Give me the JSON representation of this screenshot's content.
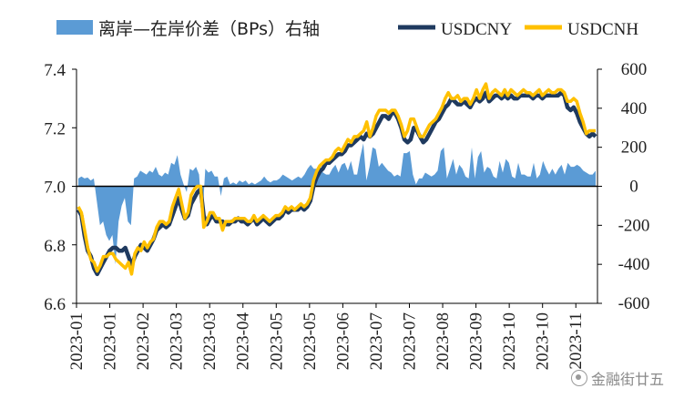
{
  "chart_data": {
    "type": "line",
    "legend": {
      "placement": "top",
      "entries": [
        {
          "label": "离岸—在岸价差（BPs）右轴",
          "style": "area",
          "color": "#5b9bd5"
        },
        {
          "label": "USDCNY",
          "style": "line",
          "color": "#1f3a5f"
        },
        {
          "label": "USDCNH",
          "style": "line",
          "color": "#ffc000"
        }
      ]
    },
    "left_axis": {
      "ylim": [
        6.6,
        7.4
      ],
      "ticks": [
        "6.6",
        "6.8",
        "7.0",
        "7.2",
        "7.4"
      ],
      "tick_values": [
        6.6,
        6.8,
        7.0,
        7.2,
        7.4
      ]
    },
    "right_axis": {
      "ylim": [
        -600,
        600
      ],
      "ticks": [
        "-600",
        "-400",
        "-200",
        "0",
        "200",
        "400",
        "600"
      ],
      "tick_values": [
        -600,
        -400,
        -200,
        0,
        200,
        400,
        600
      ]
    },
    "x_ticks": [
      "2023-01",
      "2023-01",
      "2023-02",
      "2023-03",
      "2023-03",
      "2023-04",
      "2023-05",
      "2023-05",
      "2023-06",
      "2023-07",
      "2023-07",
      "2023-08",
      "2023-09",
      "2023-10",
      "2023-10",
      "2023-11"
    ],
    "series": [
      {
        "name": "USDCNY",
        "axis": "left",
        "color": "#1f3a5f",
        "values": [
          6.92,
          6.9,
          6.83,
          6.78,
          6.76,
          6.72,
          6.7,
          6.72,
          6.74,
          6.76,
          6.78,
          6.79,
          6.79,
          6.78,
          6.78,
          6.79,
          6.76,
          6.73,
          6.76,
          6.78,
          6.8,
          6.79,
          6.78,
          6.8,
          6.82,
          6.85,
          6.86,
          6.87,
          6.86,
          6.87,
          6.9,
          6.93,
          6.96,
          6.92,
          6.89,
          6.9,
          6.94,
          6.96,
          6.98,
          6.99,
          6.9,
          6.87,
          6.89,
          6.9,
          6.88,
          6.88,
          6.88,
          6.87,
          6.87,
          6.88,
          6.88,
          6.89,
          6.88,
          6.88,
          6.87,
          6.88,
          6.89,
          6.87,
          6.88,
          6.89,
          6.88,
          6.87,
          6.88,
          6.89,
          6.89,
          6.9,
          6.92,
          6.91,
          6.92,
          6.92,
          6.92,
          6.93,
          6.92,
          6.93,
          6.95,
          7.0,
          7.03,
          7.05,
          7.06,
          7.08,
          7.08,
          7.09,
          7.1,
          7.11,
          7.11,
          7.12,
          7.14,
          7.14,
          7.15,
          7.16,
          7.17,
          7.16,
          7.18,
          7.17,
          7.18,
          7.2,
          7.22,
          7.24,
          7.24,
          7.23,
          7.25,
          7.25,
          7.23,
          7.2,
          7.16,
          7.15,
          7.16,
          7.2,
          7.19,
          7.17,
          7.15,
          7.16,
          7.18,
          7.2,
          7.22,
          7.23,
          7.25,
          7.27,
          7.28,
          7.3,
          7.29,
          7.28,
          7.28,
          7.29,
          7.28,
          7.27,
          7.29,
          7.3,
          7.29,
          7.3,
          7.32,
          7.29,
          7.3,
          7.31,
          7.31,
          7.3,
          7.31,
          7.3,
          7.31,
          7.3,
          7.3,
          7.31,
          7.31,
          7.31,
          7.31,
          7.3,
          7.31,
          7.31,
          7.3,
          7.31,
          7.31,
          7.31,
          7.31,
          7.31,
          7.32,
          7.31,
          7.27,
          7.26,
          7.27,
          7.25,
          7.22,
          7.2,
          7.18,
          7.17,
          7.18,
          7.17
        ]
      },
      {
        "name": "USDCNH",
        "axis": "left",
        "color": "#ffc000",
        "values": [
          6.93,
          6.91,
          6.85,
          6.79,
          6.75,
          6.74,
          6.71,
          6.73,
          6.76,
          6.76,
          6.77,
          6.77,
          6.75,
          6.74,
          6.73,
          6.72,
          6.74,
          6.7,
          6.77,
          6.79,
          6.78,
          6.81,
          6.79,
          6.81,
          6.82,
          6.86,
          6.88,
          6.88,
          6.87,
          6.88,
          6.93,
          6.96,
          6.99,
          6.94,
          6.89,
          6.91,
          6.97,
          6.99,
          7.0,
          7.0,
          6.86,
          6.88,
          6.91,
          6.91,
          6.89,
          6.89,
          6.85,
          6.88,
          6.88,
          6.88,
          6.89,
          6.89,
          6.89,
          6.89,
          6.88,
          6.88,
          6.9,
          6.88,
          6.89,
          6.9,
          6.89,
          6.88,
          6.89,
          6.9,
          6.9,
          6.91,
          6.93,
          6.92,
          6.93,
          6.92,
          6.93,
          6.94,
          6.93,
          6.94,
          6.96,
          7.02,
          7.05,
          7.07,
          7.08,
          7.09,
          7.09,
          7.1,
          7.12,
          7.13,
          7.12,
          7.14,
          7.16,
          7.15,
          7.17,
          7.17,
          7.18,
          7.19,
          7.22,
          7.17,
          7.2,
          7.24,
          7.26,
          7.26,
          7.26,
          7.25,
          7.26,
          7.26,
          7.24,
          7.21,
          7.17,
          7.19,
          7.23,
          7.23,
          7.2,
          7.17,
          7.17,
          7.19,
          7.21,
          7.22,
          7.23,
          7.25,
          7.27,
          7.3,
          7.32,
          7.3,
          7.3,
          7.31,
          7.29,
          7.3,
          7.3,
          7.28,
          7.3,
          7.33,
          7.3,
          7.33,
          7.35,
          7.3,
          7.32,
          7.33,
          7.32,
          7.31,
          7.33,
          7.31,
          7.33,
          7.32,
          7.31,
          7.32,
          7.33,
          7.32,
          7.32,
          7.31,
          7.32,
          7.33,
          7.31,
          7.32,
          7.33,
          7.32,
          7.32,
          7.33,
          7.33,
          7.32,
          7.29,
          7.29,
          7.3,
          7.29,
          7.25,
          7.22,
          7.18,
          7.19,
          7.19,
          7.19
        ]
      },
      {
        "name": "离岸—在岸价差（BPs）右轴",
        "axis": "right",
        "type": "area",
        "color": "#5b9bd5",
        "values": [
          40,
          50,
          40,
          45,
          30,
          40,
          -80,
          -200,
          -180,
          -250,
          -280,
          -250,
          -400,
          -180,
          -100,
          -60,
          -180,
          -200,
          40,
          50,
          80,
          70,
          60,
          80,
          70,
          100,
          60,
          50,
          70,
          60,
          120,
          110,
          160,
          60,
          10,
          -30,
          90,
          80,
          100,
          60,
          -180,
          90,
          70,
          80,
          50,
          50,
          -50,
          40,
          50,
          10,
          20,
          10,
          30,
          20,
          30,
          10,
          20,
          10,
          20,
          30,
          50,
          30,
          20,
          30,
          30,
          40,
          60,
          50,
          40,
          30,
          40,
          50,
          40,
          60,
          90,
          110,
          90,
          90,
          100,
          70,
          60,
          60,
          90,
          110,
          70,
          110,
          120,
          80,
          130,
          60,
          60,
          150,
          220,
          30,
          100,
          200,
          190,
          100,
          120,
          100,
          80,
          70,
          50,
          60,
          50,
          170,
          170,
          180,
          60,
          10,
          40,
          40,
          70,
          60,
          50,
          60,
          80,
          180,
          200,
          40,
          90,
          140,
          60,
          110,
          90,
          50,
          40,
          200,
          40,
          150,
          180,
          70,
          100,
          90,
          50,
          40,
          130,
          70,
          140,
          120,
          50,
          40,
          120,
          60,
          60,
          50,
          50,
          120,
          40,
          60,
          130,
          90,
          60,
          90,
          60,
          90,
          110,
          60,
          120,
          100,
          100,
          110,
          100,
          80,
          70,
          60,
          60,
          80
        ]
      }
    ]
  },
  "watermark": "金融街廿五"
}
